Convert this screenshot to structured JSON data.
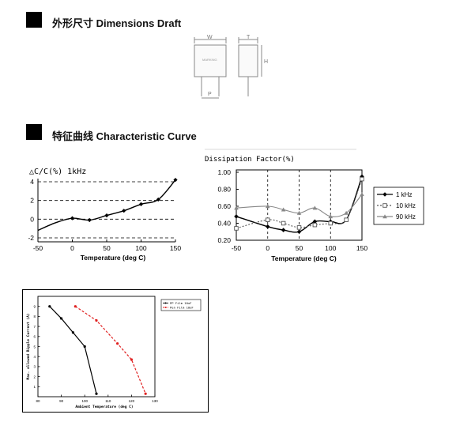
{
  "sections": [
    {
      "title": "外形尺寸 Dimensions Draft"
    },
    {
      "title": "特征曲线 Characteristic Curve"
    }
  ],
  "dimensions": {
    "front_labels": {
      "w": "W",
      "p": "P",
      "marking": "MARKING"
    },
    "side_labels": {
      "t": "T",
      "h": "H"
    }
  },
  "chart_data": [
    {
      "type": "line",
      "title": "△C/C(%) 1kHz",
      "xlabel": "Temperature (deg C)",
      "ylabel": "",
      "xlim": [
        -50,
        150
      ],
      "ylim": [
        -2,
        4
      ],
      "x_ticks": [
        "-50",
        "0",
        "50",
        "100",
        "150"
      ],
      "y_ticks": [
        "4",
        "2",
        "0",
        "-2"
      ],
      "grid": "dashed horizontal at -2, 0, 2, 4",
      "series": [
        {
          "x": [
            -50,
            -25,
            0,
            25,
            50,
            75,
            100,
            125,
            150
          ],
          "y": [
            -1.2,
            -0.4,
            0.1,
            -0.1,
            0.4,
            0.9,
            1.6,
            2.1,
            4.2
          ],
          "markers": [
            0,
            25,
            50,
            75,
            100,
            125,
            150
          ],
          "color": "#000000"
        }
      ]
    },
    {
      "type": "line",
      "title": "Dissipation Factor(%)",
      "xlabel": "Temperature (deg C)",
      "ylabel": "",
      "xlim": [
        -50,
        150
      ],
      "ylim": [
        0.2,
        1.0
      ],
      "x_ticks": [
        "-50",
        "0",
        "50",
        "100",
        "150"
      ],
      "y_ticks": [
        "1.00",
        "0.80",
        "0.60",
        "0.40",
        "0.20"
      ],
      "grid": "dashed vertical at 0, 50, 100",
      "legend": "right",
      "series": [
        {
          "name": "1 kHz",
          "color": "#000000",
          "marker": "diamond",
          "x": [
            -50,
            0,
            25,
            50,
            75,
            100,
            125,
            150
          ],
          "y": [
            0.48,
            0.36,
            0.32,
            0.3,
            0.42,
            0.42,
            0.44,
            0.95
          ]
        },
        {
          "name": "10 kHz",
          "color": "#555555",
          "marker": "square",
          "x": [
            -50,
            0,
            25,
            50,
            75,
            100,
            125,
            150
          ],
          "y": [
            0.34,
            0.44,
            0.4,
            0.35,
            0.38,
            0.4,
            0.44,
            0.92
          ]
        },
        {
          "name": "90 kHz",
          "color": "#888888",
          "marker": "triangle",
          "x": [
            -50,
            0,
            25,
            50,
            75,
            100,
            125,
            150
          ],
          "y": [
            0.58,
            0.6,
            0.56,
            0.52,
            0.58,
            0.48,
            0.52,
            0.74
          ]
        }
      ]
    },
    {
      "type": "line",
      "title": "",
      "xlabel": "Ambient Temperature (deg C)",
      "ylabel": "Max. allowed Ripple Current (A)",
      "xlim": [
        80,
        130
      ],
      "ylim": [
        0,
        10
      ],
      "x_ticks": [
        "80",
        "90",
        "100",
        "110",
        "120",
        "130"
      ],
      "y_ticks": [
        "1",
        "2",
        "3",
        "4",
        "5",
        "6",
        "7",
        "8",
        "9"
      ],
      "legend": "top-right",
      "series": [
        {
          "name": "PP Film 10uF",
          "color": "#000000",
          "style": "solid",
          "x": [
            85,
            90,
            95,
            100,
            105
          ],
          "y": [
            9.0,
            7.8,
            6.4,
            5.0,
            0.3
          ]
        },
        {
          "name": "Pen Film 10uF",
          "color": "#e02020",
          "style": "dashed",
          "x": [
            96,
            105,
            114,
            120,
            126
          ],
          "y": [
            9.0,
            7.6,
            5.3,
            3.7,
            0.3
          ]
        }
      ]
    }
  ]
}
